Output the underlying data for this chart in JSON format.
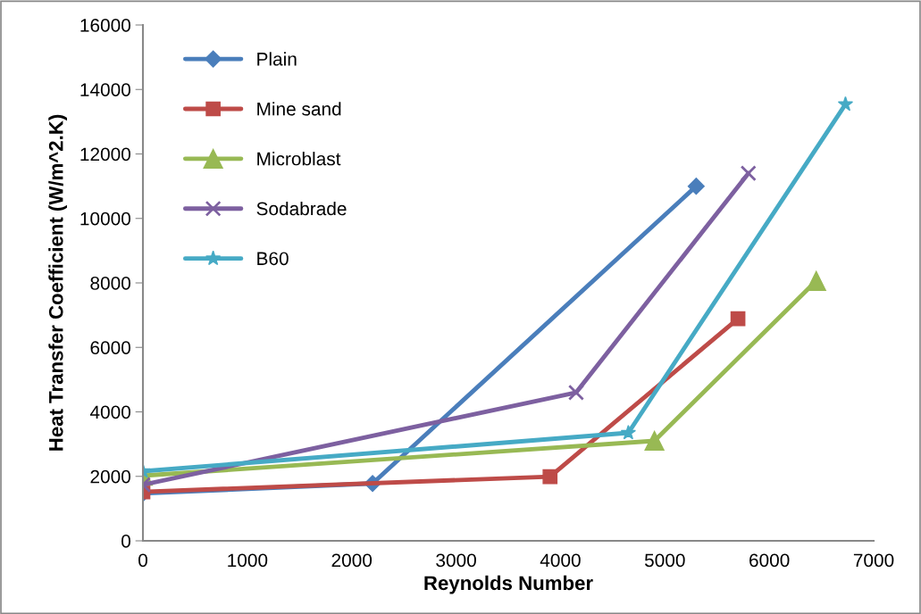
{
  "chart_data": {
    "type": "line",
    "xlabel": "Reynolds Number",
    "ylabel": "Heat Transfer Coefficient (W/m^2.K)",
    "xlim": [
      0,
      7000
    ],
    "xticks": [
      0,
      1000,
      2000,
      3000,
      4000,
      5000,
      6000,
      7000
    ],
    "ylim": [
      0,
      16000
    ],
    "yticks": [
      0,
      2000,
      4000,
      6000,
      8000,
      10000,
      12000,
      14000,
      16000
    ],
    "grid": false,
    "legend": "top left",
    "line_style": "solid",
    "series": [
      {
        "name": "Plain",
        "color": "#4a7ebb",
        "marker": "diamond",
        "x": [
          0,
          2200,
          5300
        ],
        "values": [
          1470,
          1780,
          11000
        ]
      },
      {
        "name": "Mine sand",
        "color": "#be4b48",
        "marker": "square",
        "x": [
          0,
          3900,
          5700
        ],
        "values": [
          1520,
          1990,
          6890
        ]
      },
      {
        "name": "Microblast",
        "color": "#98b954",
        "marker": "triangle",
        "x": [
          0,
          4900,
          6450
        ],
        "values": [
          2020,
          3100,
          8060
        ]
      },
      {
        "name": "Sodabrade",
        "color": "#7d60a0",
        "marker": "cross",
        "x": [
          0,
          4150,
          5800
        ],
        "values": [
          1740,
          4600,
          11400
        ]
      },
      {
        "name": "B60",
        "color": "#46aac5",
        "marker": "star",
        "x": [
          0,
          4650,
          6730
        ],
        "values": [
          2160,
          3350,
          13540
        ]
      }
    ]
  }
}
